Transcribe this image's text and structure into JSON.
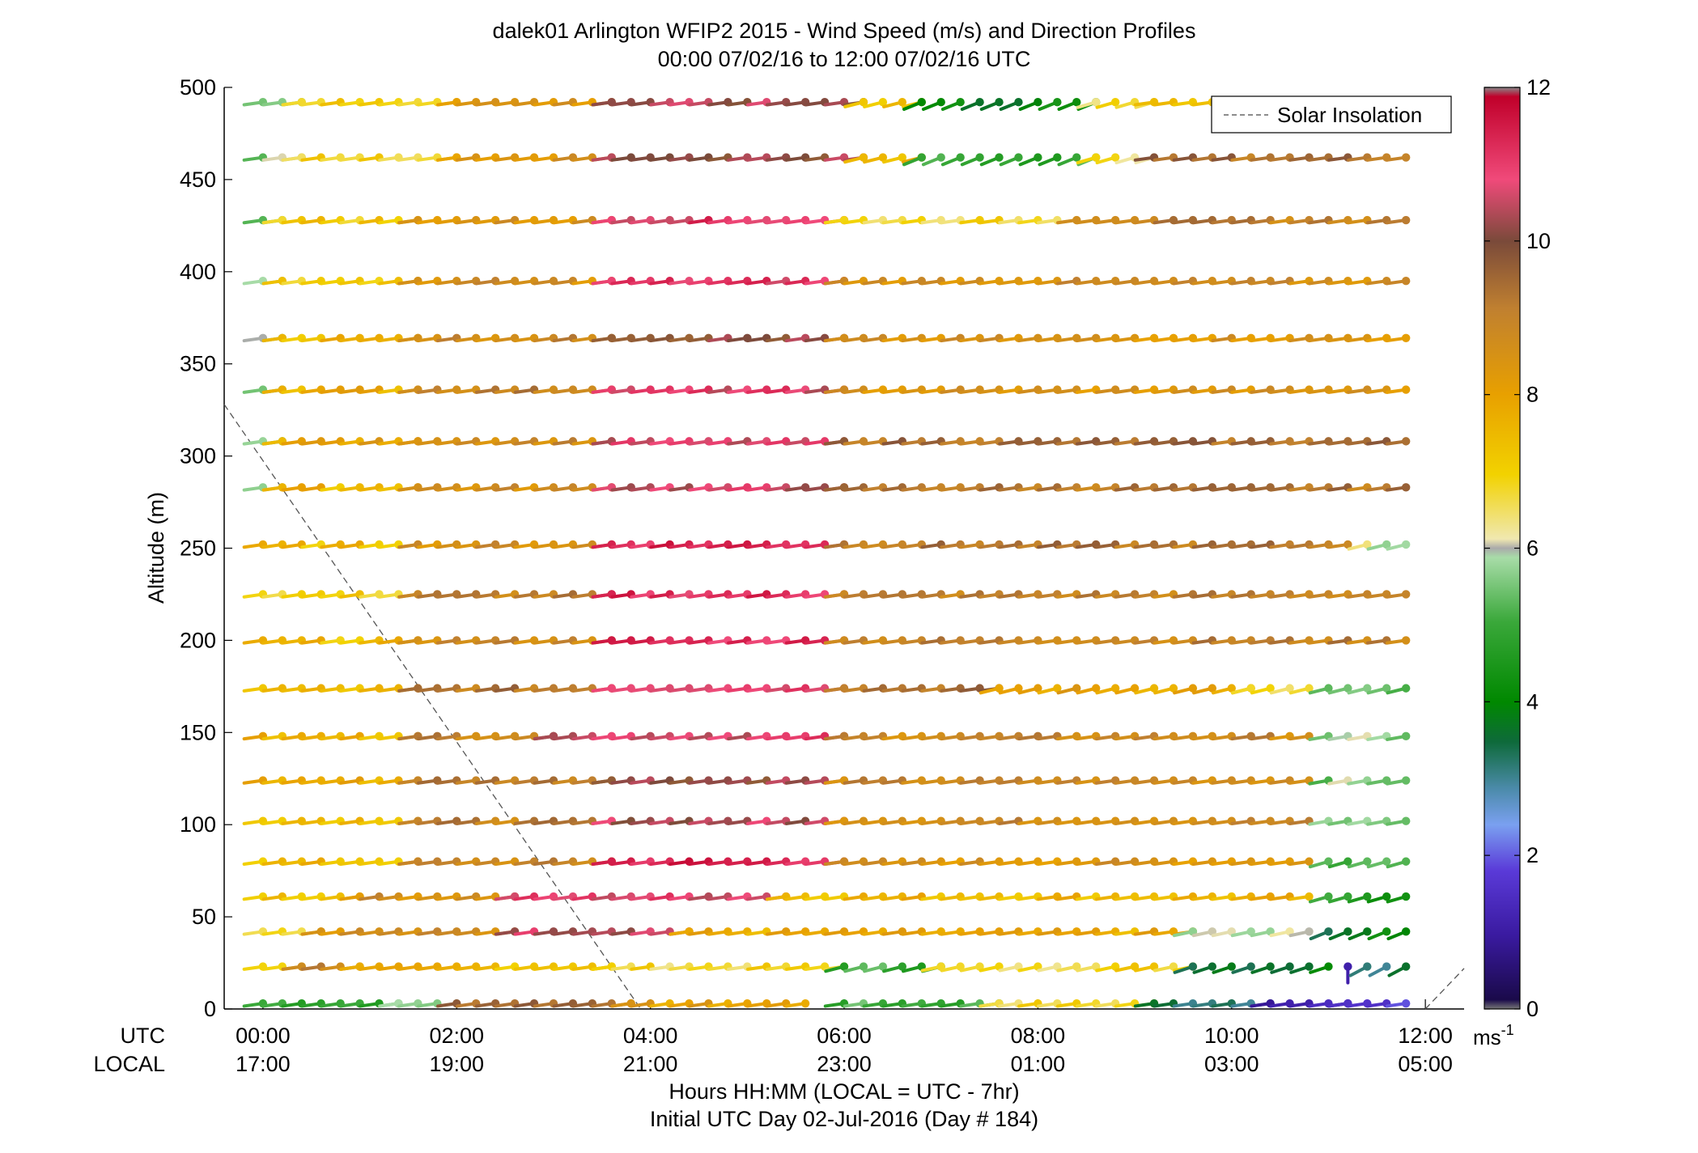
{
  "chart_data": {
    "type": "wind-barb-profile",
    "title": "dalek01 Arlington WFIP2 2015 - Wind Speed (m/s) and Direction Profiles",
    "subtitle": "00:00 07/02/16 to 12:00 07/02/16  UTC",
    "ylabel": "Altitude (m)",
    "xlabel": "Hours HH:MM  (LOCAL = UTC - 7hr)",
    "xlabel2": "Initial UTC Day 02-Jul-2016 (Day # 184)",
    "x_row_labels": [
      "UTC",
      "LOCAL"
    ],
    "x_ticks_utc": [
      "00:00",
      "02:00",
      "04:00",
      "06:00",
      "08:00",
      "10:00",
      "12:00"
    ],
    "x_ticks_local": [
      "17:00",
      "19:00",
      "21:00",
      "23:00",
      "01:00",
      "03:00",
      "05:00"
    ],
    "x_tick_hours": [
      0,
      2,
      4,
      6,
      8,
      10,
      12
    ],
    "xlim_hours": [
      -0.4,
      12.4
    ],
    "ylim": [
      0,
      500
    ],
    "y_ticks": [
      0,
      50,
      100,
      150,
      200,
      250,
      300,
      350,
      400,
      450,
      500
    ],
    "legend": {
      "label": "Solar Insolation",
      "position": "top-right"
    },
    "colorbar": {
      "ticks": [
        0,
        2,
        4,
        6,
        8,
        10,
        12
      ],
      "range": [
        0,
        12
      ],
      "unit_base": "ms",
      "unit_exp": "-1"
    },
    "solar_insolation_line": {
      "points": [
        [
          -0.4,
          328
        ],
        [
          3.9,
          0
        ]
      ],
      "points2": [
        [
          12.0,
          0
        ],
        [
          12.4,
          22
        ]
      ]
    },
    "sample_interval_hours": 0.2,
    "first_sample_hour": 0,
    "levels": [
      {
        "alt": 3,
        "segs": [
          [
            0,
            1.4,
            5.0,
            "W",
            8
          ],
          [
            1.4,
            2.0,
            5.8,
            "W",
            8
          ],
          [
            2.0,
            3.8,
            9.6,
            "W",
            8
          ],
          [
            3.8,
            5.6,
            8.0,
            "W",
            8
          ],
          [
            6.0,
            7.6,
            5.0,
            "W",
            8
          ],
          [
            7.6,
            9.2,
            6.8,
            "W",
            8
          ],
          [
            9.2,
            10.4,
            3.4,
            "W",
            8
          ],
          [
            10.4,
            10.8,
            1.0,
            "W",
            8
          ],
          [
            11.0,
            11.2,
            1.0,
            "W",
            8
          ],
          [
            11.2,
            11.8,
            1.6,
            "W",
            8
          ]
        ]
      },
      {
        "alt": 23,
        "segs": [
          [
            0,
            0.4,
            7.0,
            "W",
            8
          ],
          [
            0.4,
            1.0,
            9.0,
            "W",
            8
          ],
          [
            1.0,
            3.6,
            7.5,
            "W",
            8
          ],
          [
            3.6,
            6.0,
            6.8,
            "W",
            8
          ],
          [
            6.0,
            7.0,
            5.0,
            "SW",
            14
          ],
          [
            7.0,
            8.4,
            6.6,
            "W",
            12
          ],
          [
            8.4,
            9.6,
            7.0,
            "W",
            12
          ],
          [
            9.6,
            11.0,
            3.8,
            "SW",
            18
          ],
          [
            11.2,
            11.2,
            1.5,
            "S",
            0
          ],
          [
            11.4,
            11.8,
            3.5,
            "SW",
            28
          ]
        ]
      },
      {
        "alt": 42,
        "segs": [
          [
            0,
            0.6,
            7.0,
            "W",
            8
          ],
          [
            0.6,
            2.6,
            8.6,
            "W",
            8
          ],
          [
            2.6,
            4.4,
            10.6,
            "W",
            8
          ],
          [
            4.4,
            9.6,
            7.8,
            "W",
            8
          ],
          [
            9.6,
            10.8,
            5.8,
            "W",
            12
          ],
          [
            11.0,
            11.8,
            3.8,
            "SW",
            22
          ]
        ]
      },
      {
        "alt": 61,
        "segs": [
          [
            0,
            1.0,
            7.4,
            "W",
            8
          ],
          [
            1.0,
            2.6,
            8.6,
            "W",
            8
          ],
          [
            2.6,
            5.4,
            10.8,
            "W",
            8
          ],
          [
            5.4,
            10.8,
            7.6,
            "W",
            8
          ],
          [
            11.0,
            11.8,
            4.6,
            "SW",
            16
          ]
        ]
      },
      {
        "alt": 80,
        "segs": [
          [
            0,
            1.6,
            7.4,
            "W",
            8
          ],
          [
            1.6,
            3.6,
            8.8,
            "W",
            8
          ],
          [
            3.6,
            6.0,
            11.4,
            "W",
            8
          ],
          [
            6.0,
            10.8,
            8.4,
            "W",
            8
          ],
          [
            11.0,
            11.8,
            5.2,
            "SW",
            16
          ]
        ]
      },
      {
        "alt": 102,
        "segs": [
          [
            0,
            1.6,
            7.6,
            "W",
            8
          ],
          [
            1.6,
            3.6,
            9.0,
            "W",
            8
          ],
          [
            3.6,
            6.0,
            10.4,
            "W",
            8
          ],
          [
            6.0,
            10.8,
            8.8,
            "W",
            8
          ],
          [
            11.0,
            11.8,
            5.6,
            "W",
            10
          ]
        ]
      },
      {
        "alt": 124,
        "segs": [
          [
            0,
            1.6,
            7.8,
            "W",
            8
          ],
          [
            1.6,
            3.6,
            9.2,
            "W",
            8
          ],
          [
            3.6,
            6.0,
            10.2,
            "W",
            8
          ],
          [
            6.0,
            10.8,
            8.8,
            "W",
            8
          ],
          [
            11.0,
            11.8,
            5.6,
            "W",
            10
          ]
        ]
      },
      {
        "alt": 148,
        "segs": [
          [
            0,
            1.6,
            7.6,
            "W",
            8
          ],
          [
            1.6,
            3.0,
            9.0,
            "W",
            8
          ],
          [
            3.0,
            6.0,
            10.8,
            "W",
            8
          ],
          [
            6.0,
            10.8,
            8.8,
            "W",
            8
          ],
          [
            11.0,
            11.8,
            5.6,
            "W",
            10
          ]
        ]
      },
      {
        "alt": 174,
        "segs": [
          [
            0,
            1.6,
            7.4,
            "W",
            8
          ],
          [
            1.6,
            3.6,
            9.2,
            "W",
            8
          ],
          [
            3.6,
            6.0,
            11.0,
            "W",
            8
          ],
          [
            6.0,
            7.6,
            9.4,
            "W",
            8
          ],
          [
            7.6,
            10.2,
            8.0,
            "SW",
            14
          ],
          [
            10.2,
            10.8,
            6.6,
            "SW",
            14
          ],
          [
            11.0,
            11.8,
            5.2,
            "SW",
            14
          ]
        ]
      },
      {
        "alt": 200,
        "segs": [
          [
            0,
            1.6,
            7.4,
            "W",
            8
          ],
          [
            1.6,
            3.6,
            8.8,
            "W",
            8
          ],
          [
            3.6,
            6.0,
            11.2,
            "W",
            8
          ],
          [
            6.0,
            11.8,
            9.0,
            "W",
            8
          ]
        ]
      },
      {
        "alt": 225,
        "segs": [
          [
            0,
            1.6,
            7.0,
            "W",
            8
          ],
          [
            1.6,
            3.6,
            9.0,
            "W",
            8
          ],
          [
            3.6,
            6.0,
            11.2,
            "W",
            8
          ],
          [
            6.0,
            11.8,
            9.0,
            "W",
            8
          ]
        ]
      },
      {
        "alt": 252,
        "segs": [
          [
            0,
            1.6,
            7.4,
            "W",
            8
          ],
          [
            1.6,
            3.6,
            8.6,
            "W",
            8
          ],
          [
            3.6,
            6.0,
            11.4,
            "W",
            8
          ],
          [
            6.0,
            11.2,
            9.2,
            "W",
            8
          ],
          [
            11.4,
            11.8,
            6.0,
            "SW",
            14
          ]
        ]
      },
      {
        "alt": 283,
        "segs": [
          [
            0,
            0.2,
            6.0,
            "W",
            8
          ],
          [
            0.2,
            1.6,
            7.6,
            "W",
            8
          ],
          [
            1.6,
            3.6,
            8.6,
            "W",
            8
          ],
          [
            3.6,
            6.0,
            10.6,
            "W",
            8
          ],
          [
            6.0,
            11.8,
            9.2,
            "W",
            8
          ]
        ]
      },
      {
        "alt": 308,
        "segs": [
          [
            0,
            0.2,
            5.6,
            "W",
            8
          ],
          [
            0.2,
            1.6,
            8.0,
            "W",
            8
          ],
          [
            1.6,
            3.6,
            8.8,
            "W",
            8
          ],
          [
            3.6,
            6.0,
            10.6,
            "W",
            8
          ],
          [
            6.0,
            11.8,
            9.4,
            "W",
            8
          ]
        ]
      },
      {
        "alt": 336,
        "segs": [
          [
            0,
            0.2,
            5.6,
            "W",
            8
          ],
          [
            0.2,
            1.6,
            7.8,
            "W",
            8
          ],
          [
            1.6,
            3.6,
            9.0,
            "W",
            8
          ],
          [
            3.6,
            6.0,
            10.8,
            "W",
            8
          ],
          [
            6.0,
            11.8,
            8.4,
            "W",
            8
          ]
        ]
      },
      {
        "alt": 364,
        "segs": [
          [
            0,
            0.2,
            5.6,
            "W",
            8
          ],
          [
            0.2,
            1.6,
            7.6,
            "W",
            8
          ],
          [
            1.6,
            3.6,
            8.8,
            "W",
            8
          ],
          [
            3.6,
            6.0,
            10.0,
            "W",
            8
          ],
          [
            6.0,
            11.8,
            8.4,
            "W",
            8
          ]
        ]
      },
      {
        "alt": 395,
        "segs": [
          [
            0,
            0.2,
            5.6,
            "W",
            8
          ],
          [
            0.2,
            1.6,
            7.2,
            "W",
            8
          ],
          [
            1.6,
            3.6,
            8.6,
            "W",
            8
          ],
          [
            3.6,
            6.0,
            11.0,
            "W",
            8
          ],
          [
            6.0,
            11.8,
            8.6,
            "W",
            8
          ]
        ]
      },
      {
        "alt": 428,
        "segs": [
          [
            0,
            0.2,
            5.6,
            "W",
            8
          ],
          [
            0.2,
            1.6,
            7.2,
            "W",
            8
          ],
          [
            1.6,
            3.6,
            8.4,
            "W",
            8
          ],
          [
            3.6,
            6.0,
            11.0,
            "W",
            8
          ],
          [
            6.0,
            8.4,
            6.8,
            "W",
            8
          ],
          [
            8.4,
            11.8,
            9.0,
            "W",
            8
          ]
        ]
      },
      {
        "alt": 462,
        "segs": [
          [
            0,
            0.4,
            5.6,
            "W",
            8
          ],
          [
            0.4,
            2.0,
            7.0,
            "W",
            8
          ],
          [
            2.0,
            3.6,
            8.4,
            "W",
            8
          ],
          [
            3.6,
            6.2,
            10.2,
            "W",
            8
          ],
          [
            6.2,
            6.8,
            7.4,
            "SW",
            14
          ],
          [
            6.8,
            8.6,
            5.0,
            "SW",
            22
          ],
          [
            8.6,
            9.2,
            6.6,
            "SW",
            16
          ],
          [
            9.2,
            11.8,
            9.4,
            "W",
            8
          ]
        ]
      },
      {
        "alt": 492,
        "segs": [
          [
            0,
            0.4,
            5.6,
            "W",
            8
          ],
          [
            0.4,
            2.0,
            7.0,
            "W",
            8
          ],
          [
            2.0,
            3.6,
            8.4,
            "W",
            8
          ],
          [
            3.6,
            6.2,
            10.2,
            "W",
            8
          ],
          [
            6.2,
            6.8,
            7.4,
            "SW",
            14
          ],
          [
            6.8,
            8.6,
            4.0,
            "SW",
            22
          ],
          [
            8.6,
            9.2,
            6.6,
            "SW",
            16
          ],
          [
            9.2,
            11.8,
            7.6,
            "W",
            8
          ]
        ]
      }
    ]
  }
}
